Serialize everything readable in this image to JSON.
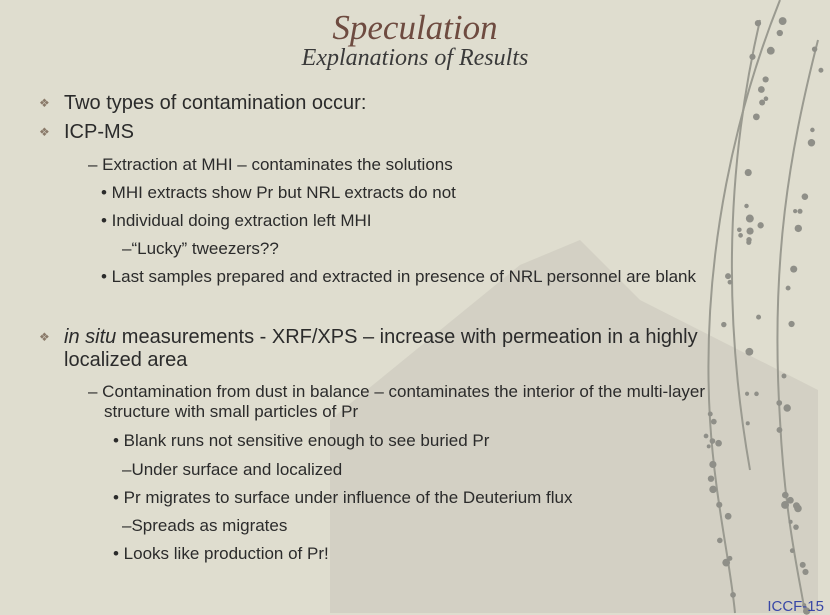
{
  "slide": {
    "title": "Speculation",
    "subtitle": "Explanations of Results",
    "bullet_icon": "diamond-bullet-icon",
    "items": [
      {
        "text": "Two types of contamination occur:"
      },
      {
        "text": "ICP-MS"
      },
      {
        "text": "– Extraction at MHI – contaminates the solutions"
      },
      {
        "text": "• MHI extracts show Pr but NRL extracts do not"
      },
      {
        "text": "• Individual doing extraction left MHI"
      },
      {
        "text": "–“Lucky” tweezers??"
      },
      {
        "text": "• Last samples prepared and extracted in presence of NRL personnel are blank"
      },
      {
        "italic": "in situ",
        "text": " measurements - XRF/XPS – increase with permeation in a highly",
        "cont": "localized area"
      },
      {
        "text": "– Contamination from dust in balance – contaminates the interior of the multi-layer",
        "cont": "structure with small particles of Pr"
      },
      {
        "text": "• Blank runs not sensitive enough to see buried Pr"
      },
      {
        "text": "–Under surface and localized"
      },
      {
        "text": "• Pr migrates to surface under influence of the Deuterium flux"
      },
      {
        "text": "–Spreads as migrates"
      },
      {
        "text": "• Looks like production of Pr!"
      }
    ],
    "footer": "ICCF-15",
    "colors": {
      "background": "#dfddcf",
      "title": "#6e4b40",
      "text": "#2b2b2b",
      "footer": "#3847a6"
    }
  }
}
